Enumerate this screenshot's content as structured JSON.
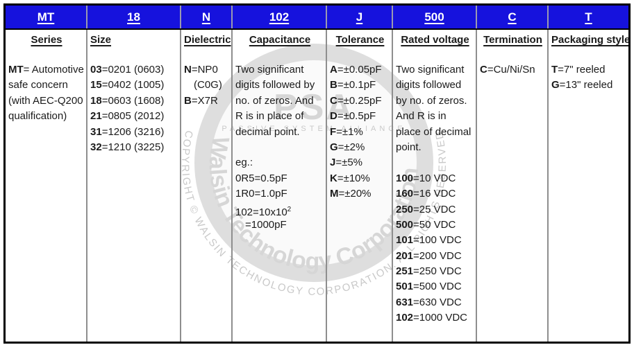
{
  "table": {
    "header_bg": "#1612dd",
    "columns": [
      {
        "code": "MT",
        "label": "Series",
        "label_align": "center",
        "items": [
          {
            "b": "MT",
            "t": "= Automotive"
          },
          {
            "t": "safe concern"
          },
          {
            "t": "(with AEC-Q200"
          },
          {
            "t": "qualification)"
          }
        ]
      },
      {
        "code": "18",
        "label": "Size",
        "label_align": "left",
        "items": [
          {
            "b": "03",
            "t": "=0201 (0603)"
          },
          {
            "b": "15",
            "t": "=0402 (1005)"
          },
          {
            "b": "18",
            "t": "=0603 (1608)"
          },
          {
            "b": "21",
            "t": "=0805 (2012)"
          },
          {
            "b": "31",
            "t": "=1206 (3216)"
          },
          {
            "b": "32",
            "t": "=1210 (3225)"
          }
        ]
      },
      {
        "code": "N",
        "label": "Dielectric",
        "label_align": "center",
        "items": [
          {
            "b": "N",
            "t": "=NP0"
          },
          {
            "t": "(C0G)",
            "indent": true
          },
          {
            "b": "B",
            "t": "=X7R"
          }
        ]
      },
      {
        "code": "102",
        "label": "Capacitance",
        "label_align": "center",
        "items": [
          {
            "t": "Two significant"
          },
          {
            "t": "digits followed by"
          },
          {
            "t": "no. of zeros. And"
          },
          {
            "t": "R is in place of"
          },
          {
            "t": "decimal point."
          },
          {
            "blank": true
          },
          {
            "t": "eg.:"
          },
          {
            "t": "0R5=0.5pF"
          },
          {
            "t": "1R0=1.0pF"
          },
          {
            "t": "102=10x10",
            "sup": "2"
          },
          {
            "t": "=1000pF",
            "indent": true
          }
        ]
      },
      {
        "code": "J",
        "label": "Tolerance",
        "label_align": "center",
        "items": [
          {
            "b": "A",
            "t": "=±0.05pF"
          },
          {
            "b": "B",
            "t": "=±0.1pF"
          },
          {
            "b": "C",
            "t": "=±0.25pF"
          },
          {
            "b": "D",
            "t": "=±0.5pF"
          },
          {
            "b": "F",
            "t": "=±1%"
          },
          {
            "b": "G",
            "t": "=±2%"
          },
          {
            "b": "J",
            "t": "=±5%"
          },
          {
            "b": "K",
            "t": "=±10%"
          },
          {
            "b": "M",
            "t": "=±20%"
          }
        ]
      },
      {
        "code": "500",
        "label": "Rated voltage",
        "label_align": "center",
        "items": [
          {
            "t": "Two significant"
          },
          {
            "t": "digits followed"
          },
          {
            "t": "by no. of zeros."
          },
          {
            "t": "And R is in"
          },
          {
            "t": "place of decimal"
          },
          {
            "t": "point."
          },
          {
            "blank": true
          },
          {
            "b": "100",
            "t": "=10 VDC"
          },
          {
            "b": "160",
            "t": "=16 VDC"
          },
          {
            "b": "250",
            "t": "=25 VDC"
          },
          {
            "b": "500",
            "t": "=50 VDC"
          },
          {
            "b": "101",
            "t": "=100 VDC"
          },
          {
            "b": "201",
            "t": "=200 VDC"
          },
          {
            "b": "251",
            "t": "=250 VDC"
          },
          {
            "b": "501",
            "t": "=500 VDC"
          },
          {
            "b": "631",
            "t": "=630 VDC"
          },
          {
            "b": "102",
            "t": "=1000 VDC"
          }
        ]
      },
      {
        "code": "C",
        "label": "Termination",
        "label_align": "center",
        "items": [
          {
            "b": "C",
            "t": "=Cu/Ni/Sn"
          }
        ]
      },
      {
        "code": "T",
        "label": "Packaging style",
        "label_align": "center",
        "items": [
          {
            "b": "T",
            "t": "=7\" reeled"
          },
          {
            "b": "G",
            "t": "=13\" reeled"
          }
        ]
      }
    ]
  },
  "watermark": {
    "psa_text": "PSA",
    "alliance_text": "PASSIVE SYSTEM ALLIANCE",
    "company_text": "Walsin Technology Corporation",
    "copyright_text": "COPYRIGHT © WALSIN TECHNOLOGY CORPORATION. ALL RIGHTS RESERVED.",
    "ring_color": "#dedede",
    "text_color": "#c9c9c9",
    "big_text_color": "#d6d6d6"
  }
}
